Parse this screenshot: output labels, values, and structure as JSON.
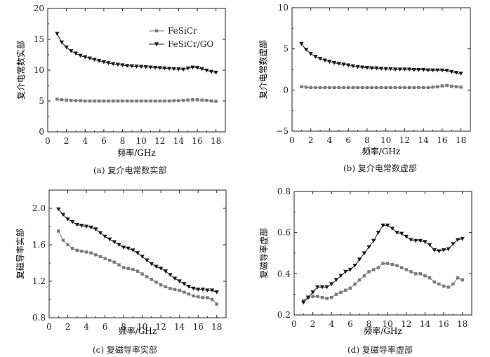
{
  "chart_data": [
    {
      "id": "a",
      "type": "line",
      "caption": "(a) 复介电常数实部",
      "xlabel": "频率/GHz",
      "ylabel": "复介电常数实部",
      "xlim": [
        0,
        19
      ],
      "ylim": [
        0,
        20
      ],
      "xticks": [
        0,
        2,
        4,
        6,
        8,
        10,
        12,
        14,
        16,
        18
      ],
      "xtick_labels": [
        "0",
        "2",
        "4",
        "6",
        "8",
        "10",
        "12",
        "14",
        "16",
        "18"
      ],
      "yticks": [
        0,
        5,
        10,
        15,
        20
      ],
      "ytick_labels": [
        "0",
        "5",
        "10",
        "15",
        "20"
      ],
      "x": [
        1.0,
        1.5,
        2.0,
        2.5,
        3.0,
        3.5,
        4.0,
        4.5,
        5.0,
        5.5,
        6.0,
        6.5,
        7.0,
        7.5,
        8.0,
        8.5,
        9.0,
        9.5,
        10.0,
        10.5,
        11.0,
        11.5,
        12.0,
        12.5,
        13.0,
        13.5,
        14.0,
        14.5,
        15.0,
        15.5,
        16.0,
        16.5,
        17.0,
        17.5,
        18.0
      ],
      "legend": {
        "position": "top-right",
        "entries": [
          "FeSiCr",
          "FeSiCr/GO"
        ]
      },
      "series": [
        {
          "name": "FeSiCr",
          "marker": "square",
          "values": [
            5.3,
            5.2,
            5.15,
            5.1,
            5.05,
            5.05,
            5.0,
            5.0,
            5.0,
            5.0,
            5.0,
            5.0,
            5.0,
            5.0,
            5.0,
            5.0,
            5.0,
            5.0,
            5.0,
            5.0,
            5.0,
            5.0,
            5.0,
            5.0,
            5.0,
            5.05,
            5.05,
            5.1,
            5.15,
            5.2,
            5.2,
            5.15,
            5.1,
            5.0,
            4.95
          ]
        },
        {
          "name": "FeSiCr/GO",
          "marker": "triangle-down",
          "values": [
            15.9,
            14.5,
            13.7,
            13.1,
            12.7,
            12.35,
            12.1,
            11.9,
            11.7,
            11.5,
            11.3,
            11.15,
            11.0,
            10.9,
            10.8,
            10.7,
            10.65,
            10.6,
            10.55,
            10.5,
            10.45,
            10.4,
            10.35,
            10.3,
            10.25,
            10.2,
            10.15,
            10.1,
            10.3,
            10.45,
            10.4,
            10.2,
            9.95,
            9.75,
            9.6
          ]
        }
      ]
    },
    {
      "id": "b",
      "type": "line",
      "caption": "(b) 复介电常数虚部",
      "xlabel": "频率/GHz",
      "ylabel": "复介电常数虚部",
      "xlim": [
        0,
        19
      ],
      "ylim": [
        -5,
        10
      ],
      "xticks": [
        0,
        2,
        4,
        6,
        8,
        10,
        12,
        14,
        16,
        18
      ],
      "xtick_labels": [
        "0",
        "2",
        "4",
        "6",
        "8",
        "10",
        "12",
        "14",
        "16",
        "18"
      ],
      "yticks": [
        -5,
        0,
        5,
        10
      ],
      "ytick_labels": [
        "−5",
        "0",
        "5",
        "10"
      ],
      "x": [
        1.0,
        1.5,
        2.0,
        2.5,
        3.0,
        3.5,
        4.0,
        4.5,
        5.0,
        5.5,
        6.0,
        6.5,
        7.0,
        7.5,
        8.0,
        8.5,
        9.0,
        9.5,
        10.0,
        10.5,
        11.0,
        11.5,
        12.0,
        12.5,
        13.0,
        13.5,
        14.0,
        14.5,
        15.0,
        15.5,
        16.0,
        16.5,
        17.0,
        17.5,
        18.0
      ],
      "series": [
        {
          "name": "FeSiCr",
          "marker": "square",
          "values": [
            0.4,
            0.35,
            0.3,
            0.3,
            0.3,
            0.3,
            0.3,
            0.3,
            0.3,
            0.3,
            0.3,
            0.3,
            0.3,
            0.3,
            0.3,
            0.3,
            0.3,
            0.3,
            0.3,
            0.3,
            0.3,
            0.3,
            0.3,
            0.3,
            0.3,
            0.3,
            0.3,
            0.3,
            0.35,
            0.4,
            0.5,
            0.55,
            0.45,
            0.4,
            0.35
          ]
        },
        {
          "name": "FeSiCr/GO",
          "marker": "triangle-down",
          "values": [
            5.6,
            4.9,
            4.4,
            4.05,
            3.8,
            3.6,
            3.45,
            3.3,
            3.2,
            3.1,
            3.0,
            2.9,
            2.8,
            2.75,
            2.7,
            2.65,
            2.65,
            2.6,
            2.55,
            2.55,
            2.5,
            2.5,
            2.5,
            2.5,
            2.45,
            2.45,
            2.45,
            2.4,
            2.4,
            2.4,
            2.4,
            2.35,
            2.2,
            2.1,
            2.0
          ]
        }
      ]
    },
    {
      "id": "c",
      "type": "line",
      "caption": "(c) 复磁导率实部",
      "xlabel": "频率/GHz",
      "ylabel": "复磁导率实部",
      "xlim": [
        0,
        19
      ],
      "ylim": [
        0.8,
        2.2
      ],
      "xticks": [
        0,
        2,
        4,
        6,
        8,
        10,
        12,
        14,
        16,
        18
      ],
      "xtick_labels": [
        "0",
        "2",
        "4",
        "6",
        "8",
        "10",
        "12",
        "14",
        "16",
        "18"
      ],
      "yticks": [
        0.8,
        1.2,
        1.6,
        2.0
      ],
      "ytick_labels": [
        "0.8",
        "1.2",
        "1.6",
        "2.0"
      ],
      "x": [
        1.0,
        1.5,
        2.0,
        2.5,
        3.0,
        3.5,
        4.0,
        4.5,
        5.0,
        5.5,
        6.0,
        6.5,
        7.0,
        7.5,
        8.0,
        8.5,
        9.0,
        9.5,
        10.0,
        10.5,
        11.0,
        11.5,
        12.0,
        12.5,
        13.0,
        13.5,
        14.0,
        14.5,
        15.0,
        15.5,
        16.0,
        16.5,
        17.0,
        17.5,
        18.0
      ],
      "series": [
        {
          "name": "FeSiCr",
          "marker": "square",
          "values": [
            1.75,
            1.65,
            1.6,
            1.56,
            1.54,
            1.53,
            1.52,
            1.51,
            1.49,
            1.47,
            1.45,
            1.43,
            1.41,
            1.38,
            1.35,
            1.34,
            1.33,
            1.31,
            1.28,
            1.25,
            1.22,
            1.19,
            1.16,
            1.14,
            1.12,
            1.11,
            1.1,
            1.08,
            1.06,
            1.04,
            1.03,
            1.02,
            1.02,
            1.0,
            0.95
          ]
        },
        {
          "name": "FeSiCr/GO",
          "marker": "triangle-down",
          "values": [
            1.99,
            1.93,
            1.88,
            1.85,
            1.82,
            1.81,
            1.8,
            1.79,
            1.77,
            1.73,
            1.69,
            1.66,
            1.63,
            1.6,
            1.57,
            1.56,
            1.54,
            1.51,
            1.47,
            1.43,
            1.39,
            1.36,
            1.34,
            1.31,
            1.27,
            1.23,
            1.2,
            1.17,
            1.14,
            1.12,
            1.11,
            1.11,
            1.1,
            1.1,
            1.08
          ]
        }
      ]
    },
    {
      "id": "d",
      "type": "line",
      "caption": "(d) 复磁导率虚部",
      "xlabel": "频率/GHz",
      "ylabel": "复磁导率虚部",
      "xlim": [
        0,
        19
      ],
      "ylim": [
        0.2,
        0.8
      ],
      "xticks": [
        0,
        2,
        4,
        6,
        8,
        10,
        12,
        14,
        16,
        18
      ],
      "xtick_labels": [
        "0",
        "2",
        "4",
        "6",
        "8",
        "10",
        "12",
        "14",
        "16",
        "18"
      ],
      "yticks": [
        0.2,
        0.4,
        0.6,
        0.8
      ],
      "ytick_labels": [
        "0.2",
        "0.4",
        "0.6",
        "0.8"
      ],
      "x": [
        1.0,
        1.5,
        2.0,
        2.5,
        3.0,
        3.5,
        4.0,
        4.5,
        5.0,
        5.5,
        6.0,
        6.5,
        7.0,
        7.5,
        8.0,
        8.5,
        9.0,
        9.5,
        10.0,
        10.5,
        11.0,
        11.5,
        12.0,
        12.5,
        13.0,
        13.5,
        14.0,
        14.5,
        15.0,
        15.5,
        16.0,
        16.5,
        17.0,
        17.5,
        18.0
      ],
      "series": [
        {
          "name": "FeSiCr",
          "marker": "square",
          "values": [
            0.27,
            0.285,
            0.29,
            0.29,
            0.285,
            0.28,
            0.285,
            0.3,
            0.31,
            0.32,
            0.33,
            0.35,
            0.37,
            0.39,
            0.41,
            0.42,
            0.43,
            0.45,
            0.45,
            0.445,
            0.44,
            0.43,
            0.42,
            0.41,
            0.4,
            0.4,
            0.39,
            0.38,
            0.36,
            0.35,
            0.34,
            0.335,
            0.35,
            0.38,
            0.37
          ]
        },
        {
          "name": "FeSiCr/GO",
          "marker": "triangle-down",
          "values": [
            0.26,
            0.285,
            0.31,
            0.335,
            0.335,
            0.335,
            0.35,
            0.37,
            0.39,
            0.41,
            0.42,
            0.44,
            0.47,
            0.5,
            0.53,
            0.56,
            0.6,
            0.635,
            0.635,
            0.62,
            0.6,
            0.595,
            0.58,
            0.565,
            0.56,
            0.56,
            0.555,
            0.54,
            0.515,
            0.51,
            0.515,
            0.52,
            0.545,
            0.565,
            0.57
          ]
        }
      ]
    }
  ]
}
